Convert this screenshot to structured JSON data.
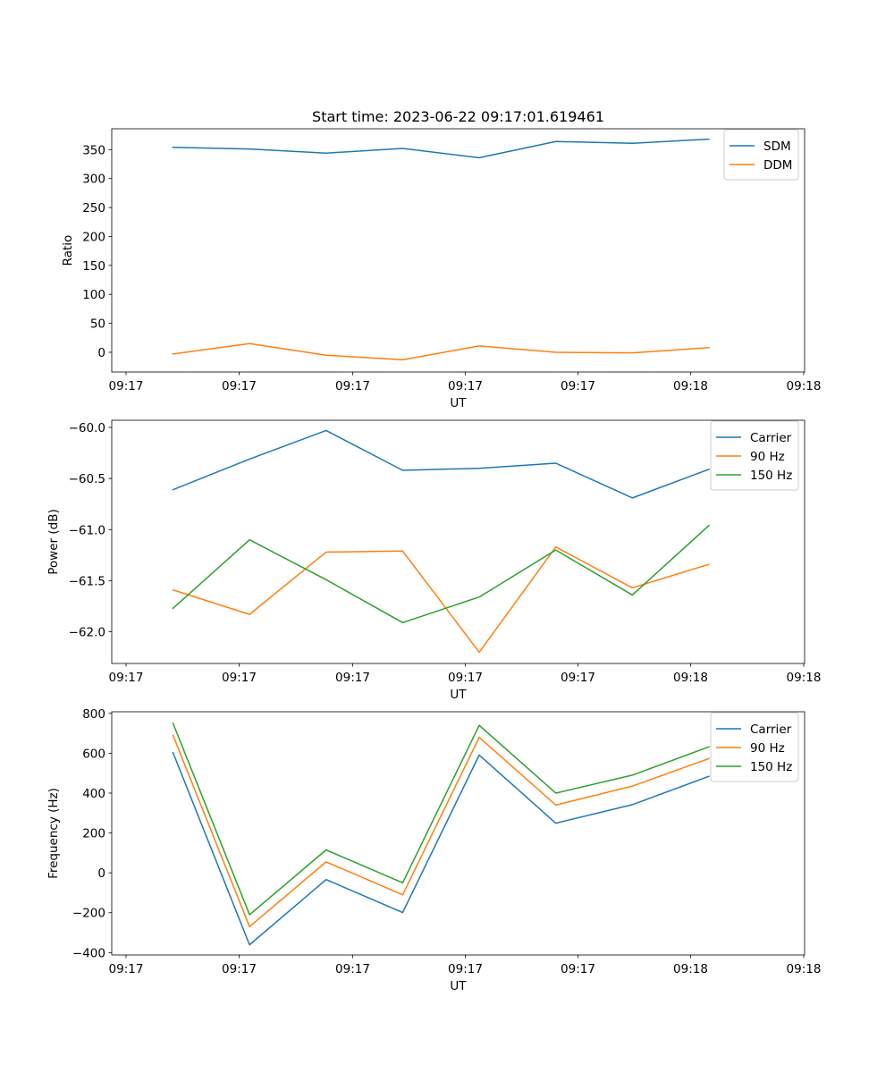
{
  "figure_title": "Start time: 2023-06-22 09:17:01.619461",
  "chart_data": [
    {
      "type": "line",
      "title": "Start time: 2023-06-22 09:17:01.619461",
      "xlabel": "UT",
      "ylabel": "Ratio",
      "x_tick_labels": [
        "09:17",
        "09:17",
        "09:17",
        "09:17",
        "09:17",
        "09:18"
      ],
      "x": [
        1,
        2,
        3,
        4,
        5,
        6,
        7,
        8
      ],
      "xlim": [
        0.2,
        9.25
      ],
      "ylim": [
        -34,
        386
      ],
      "y_ticks": [
        0,
        50,
        100,
        150,
        200,
        250,
        300,
        350
      ],
      "grid": false,
      "legend_position": "upper right",
      "series": [
        {
          "name": "SDM",
          "color": "#1f77b4",
          "values": [
            354,
            351,
            344,
            352,
            336,
            364,
            361,
            368
          ]
        },
        {
          "name": "DDM",
          "color": "#ff7f0e",
          "values": [
            -3,
            15,
            -5,
            -13,
            11,
            0,
            -1,
            8
          ]
        }
      ]
    },
    {
      "type": "line",
      "title": "",
      "xlabel": "UT",
      "ylabel": "Power (dB)",
      "x_tick_labels": [
        "09:17",
        "09:17",
        "09:17",
        "09:17",
        "09:17",
        "09:18"
      ],
      "x": [
        1,
        2,
        3,
        4,
        5,
        6,
        7,
        8
      ],
      "xlim": [
        0.2,
        9.25
      ],
      "ylim": [
        -62.31,
        -59.93
      ],
      "y_ticks": [
        -62.0,
        -61.5,
        -61.0,
        -60.5,
        -60.0
      ],
      "y_tick_labels": [
        "−62.0",
        "−61.5",
        "−61.0",
        "−60.5",
        "−60.0"
      ],
      "grid": false,
      "legend_position": "upper right",
      "series": [
        {
          "name": "Carrier",
          "color": "#1f77b4",
          "values": [
            -60.61,
            -60.31,
            -60.03,
            -60.42,
            -60.4,
            -60.35,
            -60.69,
            -60.41
          ]
        },
        {
          "name": "90 Hz",
          "color": "#ff7f0e",
          "values": [
            -61.59,
            -61.83,
            -61.22,
            -61.21,
            -62.2,
            -61.17,
            -61.57,
            -61.34
          ]
        },
        {
          "name": "150 Hz",
          "color": "#2ca02c",
          "values": [
            -61.77,
            -61.1,
            -61.49,
            -61.91,
            -61.66,
            -61.2,
            -61.64,
            -60.96
          ]
        }
      ]
    },
    {
      "type": "line",
      "title": "",
      "xlabel": "UT",
      "ylabel": "Frequency (Hz)",
      "x_tick_labels": [
        "09:17",
        "09:17",
        "09:17",
        "09:17",
        "09:17",
        "09:18"
      ],
      "x": [
        1,
        2,
        3,
        4,
        5,
        6,
        7,
        8
      ],
      "xlim": [
        0.2,
        9.25
      ],
      "ylim": [
        -412,
        808
      ],
      "y_ticks": [
        -400,
        -200,
        0,
        200,
        400,
        600,
        800
      ],
      "y_tick_labels": [
        "−400",
        "−200",
        "0",
        "200",
        "400",
        "600",
        "800"
      ],
      "grid": false,
      "legend_position": "upper right",
      "series": [
        {
          "name": "Carrier",
          "color": "#1f77b4",
          "values": [
            603,
            -361,
            -34,
            -199,
            591,
            249,
            342,
            484
          ]
        },
        {
          "name": "90 Hz",
          "color": "#ff7f0e",
          "values": [
            690,
            -270,
            55,
            -110,
            680,
            340,
            435,
            573
          ]
        },
        {
          "name": "150 Hz",
          "color": "#2ca02c",
          "values": [
            750,
            -210,
            115,
            -50,
            740,
            400,
            490,
            632
          ]
        }
      ]
    }
  ]
}
